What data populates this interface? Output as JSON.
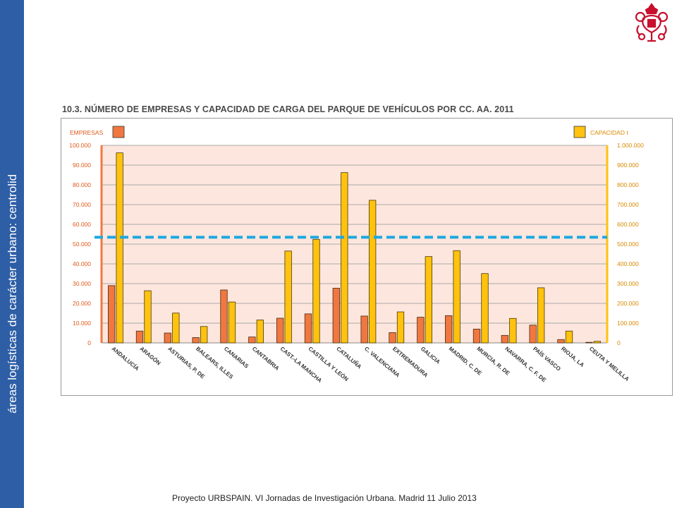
{
  "sidebar": {
    "text": "áreas logísticas de carácter urbano: centrolid"
  },
  "footer": {
    "text": "Proyecto URBSPAIN. VI  Jornadas de Investigación Urbana. Madrid 11 Julio 2013"
  },
  "logo": {
    "icon": "coat-of-arms-icon",
    "color": "#c8102e"
  },
  "colors": {
    "empresas": "#f07840",
    "capacidad": "#ffc20e",
    "plot_bg": "#fde6dd",
    "reference_line": "#1fa8e0",
    "sidebar": "#2d5ea6"
  },
  "chart_data": {
    "type": "bar",
    "title": "10.3. NÚMERO DE EMPRESAS Y CAPACIDAD DE CARGA DEL PARQUE DE VEHÍCULOS POR CC. AA. 2011",
    "categories": [
      "ANDALUCÍA",
      "ARAGÓN",
      "ASTURIAS, P. DE",
      "BALEARS, ILLES",
      "CANARIAS",
      "CANTABRIA",
      "CAST.-LA MANCHA",
      "CASTILLA Y LEÓN",
      "CATALUÑA",
      "C. VALENCIANA",
      "EXTREMADURA",
      "GALICIA",
      "MADRID, C. DE",
      "MURCIA, R. DE",
      "NAVARRA, C. F. DE",
      "PAÍS VASCO",
      "RIOJA, LA",
      "CEUTA Y MELILLA"
    ],
    "series": [
      {
        "name": "EMPRESAS",
        "axis": "left",
        "values": [
          29000,
          6000,
          5000,
          2700,
          26800,
          3000,
          12500,
          14700,
          27700,
          13600,
          5200,
          13000,
          13800,
          7000,
          3800,
          9000,
          1700,
          300
        ]
      },
      {
        "name": "CAPACIDAD t",
        "axis": "right",
        "values": [
          962000,
          264000,
          151000,
          83000,
          207000,
          116000,
          465000,
          524000,
          862000,
          722000,
          157000,
          437000,
          467000,
          351000,
          124000,
          279000,
          60000,
          8000
        ]
      }
    ],
    "y_left": {
      "ylim": [
        0,
        100000
      ],
      "ticks": [
        "0",
        "10.000",
        "20.000",
        "30.000",
        "40.000",
        "50.000",
        "60.000",
        "70.000",
        "80.000",
        "90.000",
        "100.000"
      ]
    },
    "y_right": {
      "ylim": [
        0,
        1000000
      ],
      "ticks": [
        "0",
        "100.000",
        "200.000",
        "300.000",
        "400.000",
        "500.000",
        "600.000",
        "700.000",
        "800.000",
        "900.000",
        "1.000.000"
      ]
    },
    "reference_line": {
      "axis": "left",
      "value": 53500,
      "style": "dashed"
    },
    "grid": true,
    "legend": {
      "left": "EMPRESAS",
      "right": "CAPACIDAD t"
    }
  }
}
